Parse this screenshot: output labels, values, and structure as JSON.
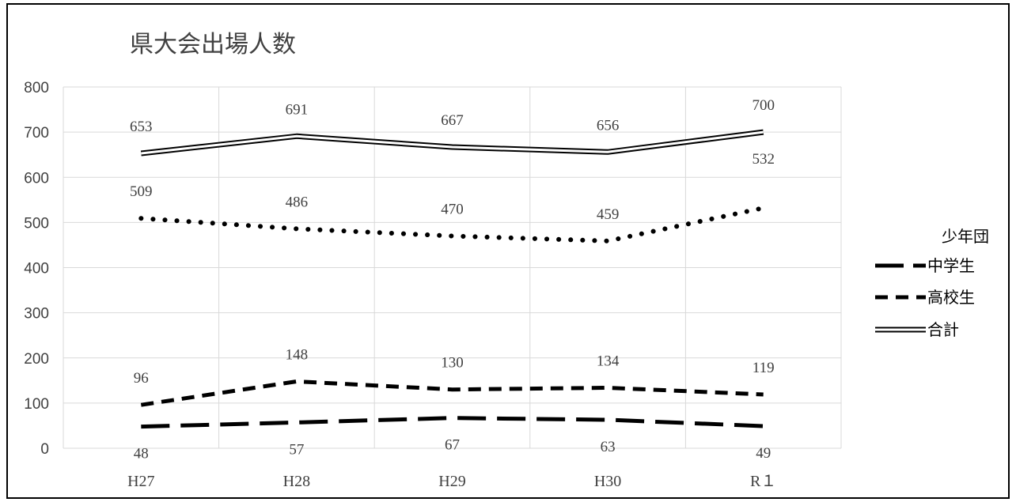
{
  "chart_data": {
    "type": "line",
    "title": "県大会出場人数",
    "categories": [
      "H27",
      "H28",
      "H29",
      "H30",
      "R１"
    ],
    "ylim": [
      0,
      800
    ],
    "yticks": [
      0,
      100,
      200,
      300,
      400,
      500,
      600,
      700,
      800
    ],
    "grid": true,
    "legend_position": "right",
    "series": [
      {
        "name": "少年団",
        "values": [
          509,
          486,
          470,
          459,
          532
        ],
        "style": "dotted",
        "color": "#000000"
      },
      {
        "name": "中学生",
        "values": [
          48,
          57,
          67,
          63,
          49
        ],
        "style": "long-dash",
        "color": "#000000"
      },
      {
        "name": "高校生",
        "values": [
          96,
          148,
          130,
          134,
          119
        ],
        "style": "dash",
        "color": "#000000"
      },
      {
        "name": "合計",
        "values": [
          653,
          691,
          667,
          656,
          700
        ],
        "style": "double",
        "color": "#000000"
      }
    ]
  }
}
